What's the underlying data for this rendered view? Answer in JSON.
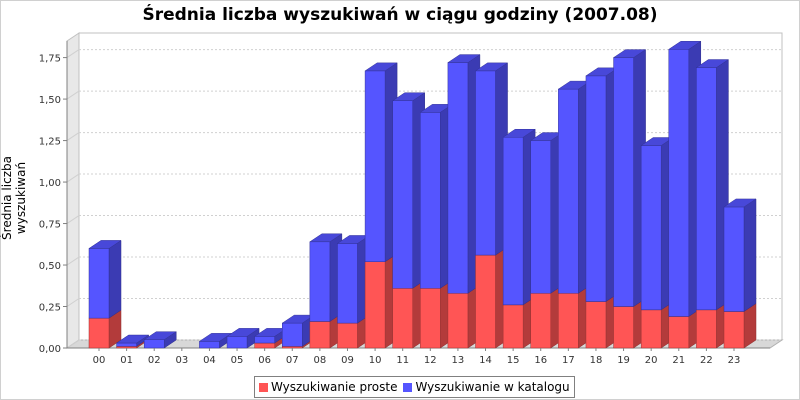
{
  "chart_data": {
    "type": "bar",
    "stacked": true,
    "title": "Średnia liczba wyszukiwań w ciągu godziny (2007.08)",
    "xlabel": "",
    "ylabel": "Średnia liczba wyszukiwań",
    "categories": [
      "00",
      "01",
      "02",
      "03",
      "04",
      "05",
      "06",
      "07",
      "08",
      "09",
      "10",
      "11",
      "12",
      "13",
      "14",
      "15",
      "16",
      "17",
      "18",
      "19",
      "20",
      "21",
      "22",
      "23"
    ],
    "ylim": [
      0,
      1.85
    ],
    "yticks": [
      "0,00",
      "0,25",
      "0,50",
      "0,75",
      "1,00",
      "1,25",
      "1,50",
      "1,75"
    ],
    "grid": true,
    "legend_position": "bottom",
    "series": [
      {
        "name": "Wyszukiwanie proste",
        "color": "#ff5555",
        "values": [
          0.18,
          0.01,
          0.0,
          0.0,
          0.0,
          0.0,
          0.03,
          0.01,
          0.16,
          0.15,
          0.52,
          0.36,
          0.36,
          0.33,
          0.56,
          0.26,
          0.33,
          0.33,
          0.28,
          0.25,
          0.23,
          0.19,
          0.23,
          0.22
        ]
      },
      {
        "name": "Wyszukiwanie w katalogu",
        "color": "#5555ff",
        "values": [
          0.42,
          0.02,
          0.05,
          0.0,
          0.04,
          0.07,
          0.04,
          0.14,
          0.48,
          0.48,
          1.15,
          1.13,
          1.06,
          1.39,
          1.11,
          1.01,
          0.92,
          1.23,
          1.36,
          1.5,
          0.99,
          1.61,
          1.46,
          0.63
        ]
      }
    ]
  }
}
